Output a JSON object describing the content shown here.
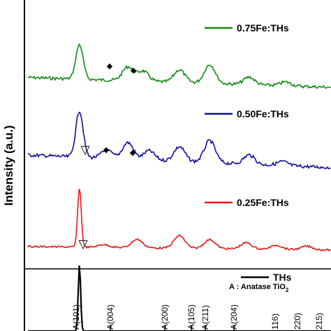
{
  "chart_data": {
    "type": "line",
    "ylabel": "Intensity (a.u.)",
    "xlabel": "",
    "grid": false,
    "legend_position": "right",
    "series": [
      {
        "name": "0.75Fe:THs",
        "color": "#138a13",
        "peaks": [
          [
            0.17,
            55
          ],
          [
            0.33,
            22
          ],
          [
            0.38,
            16
          ],
          [
            0.5,
            20
          ],
          [
            0.6,
            30
          ],
          [
            0.73,
            12
          ],
          [
            0.85,
            6
          ]
        ]
      },
      {
        "name": "0.50Fe:THs",
        "color": "#10109a",
        "peaks": [
          [
            0.17,
            70
          ],
          [
            0.26,
            12
          ],
          [
            0.33,
            25
          ],
          [
            0.4,
            14
          ],
          [
            0.5,
            22
          ],
          [
            0.6,
            33
          ],
          [
            0.73,
            14
          ],
          [
            0.84,
            6
          ]
        ]
      },
      {
        "name": "0.25Fe:THs",
        "color": "#e41a1a",
        "peaks": [
          [
            0.17,
            85
          ],
          [
            0.25,
            4
          ],
          [
            0.36,
            12
          ],
          [
            0.5,
            18
          ],
          [
            0.6,
            13
          ],
          [
            0.72,
            9
          ],
          [
            0.82,
            6
          ],
          [
            0.92,
            5
          ]
        ]
      },
      {
        "name": "THs",
        "color": "#000000",
        "peaks": [
          [
            0.17,
            100
          ]
        ]
      }
    ],
    "markers": {
      "diamond": "◆",
      "triangle": "▽"
    },
    "annotations": {
      "anatase_label": "A : Anatase TiO",
      "anatase_sub": "2",
      "reference_peaks": [
        "A(101)",
        "A(004)",
        "A(200)",
        "A(105)",
        "A(211)",
        "A(204)",
        "116)",
        "220)",
        "215)"
      ]
    }
  }
}
